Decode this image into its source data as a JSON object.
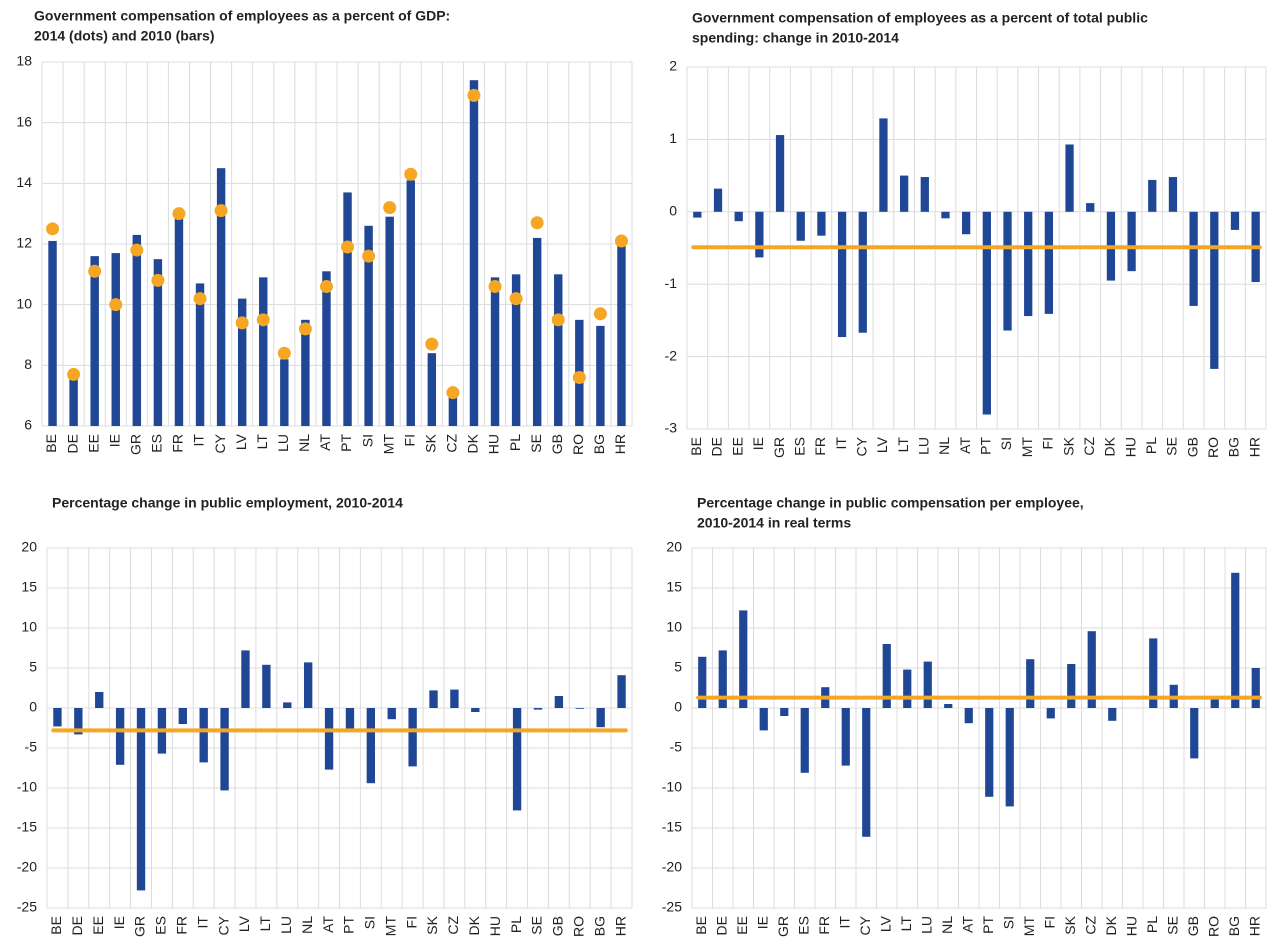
{
  "chart_data": [
    {
      "type": "bar",
      "title": [
        "Government compensation of employees as a percent of GDP:",
        "2014 (dots) and 2010 (bars)"
      ],
      "categories": [
        "BE",
        "DE",
        "EE",
        "IE",
        "GR",
        "ES",
        "FR",
        "IT",
        "CY",
        "LV",
        "LT",
        "LU",
        "NL",
        "AT",
        "PT",
        "SI",
        "MT",
        "FI",
        "SK",
        "CZ",
        "DK",
        "HU",
        "PL",
        "SE",
        "GB",
        "RO",
        "BG",
        "HR"
      ],
      "values": [
        12.1,
        7.6,
        11.6,
        11.7,
        12.3,
        11.5,
        12.9,
        10.7,
        14.5,
        10.2,
        10.9,
        8.2,
        9.5,
        11.1,
        13.7,
        12.6,
        12.9,
        14.1,
        8.4,
        7.0,
        17.4,
        10.9,
        11.0,
        12.2,
        11.0,
        9.5,
        9.3,
        12.0
      ],
      "color": "#1f4796",
      "dots": [
        12.5,
        7.7,
        11.1,
        10.0,
        11.8,
        10.8,
        13.0,
        10.2,
        13.1,
        9.4,
        9.5,
        8.4,
        9.2,
        10.6,
        11.9,
        11.6,
        13.2,
        14.3,
        8.7,
        7.1,
        16.9,
        10.6,
        10.2,
        12.7,
        9.5,
        7.6,
        9.7,
        12.1
      ],
      "dot_color": "#f5a623",
      "ylim": [
        6,
        18
      ],
      "yticks": [
        6,
        8,
        10,
        12,
        14,
        16,
        18
      ],
      "grid": true
    },
    {
      "type": "bar",
      "title": [
        "Government compensation of employees as a percent of total public",
        "spending: change in 2010-2014"
      ],
      "categories": [
        "BE",
        "DE",
        "EE",
        "IE",
        "GR",
        "ES",
        "FR",
        "IT",
        "CY",
        "LV",
        "LT",
        "LU",
        "NL",
        "AT",
        "PT",
        "SI",
        "MT",
        "FI",
        "SK",
        "CZ",
        "DK",
        "HU",
        "PL",
        "SE",
        "GB",
        "RO",
        "BG",
        "HR"
      ],
      "values": [
        -0.08,
        0.32,
        -0.13,
        -0.63,
        1.06,
        -0.4,
        -0.33,
        -1.73,
        -1.67,
        1.29,
        0.5,
        0.48,
        -0.09,
        -0.31,
        -2.8,
        -1.64,
        -1.44,
        -1.41,
        0.93,
        0.12,
        -0.95,
        -0.82,
        0.44,
        0.48,
        -1.3,
        -2.17,
        -0.25,
        -0.97
      ],
      "color": "#1f4796",
      "average": -0.49,
      "average_color": "#f5a623",
      "ylim": [
        -3,
        2
      ],
      "yticks": [
        -3,
        -2,
        -1,
        0,
        1,
        2
      ],
      "grid": true
    },
    {
      "type": "bar",
      "title": [
        "Percentage change in public employment, 2010-2014"
      ],
      "categories": [
        "BE",
        "DE",
        "EE",
        "IE",
        "GR",
        "ES",
        "FR",
        "IT",
        "CY",
        "LV",
        "LT",
        "LU",
        "NL",
        "AT",
        "PT",
        "SI",
        "MT",
        "FI",
        "SK",
        "CZ",
        "DK",
        "HU",
        "PL",
        "SE",
        "GB",
        "RO",
        "BG",
        "HR"
      ],
      "values": [
        -2.3,
        -3.3,
        2.0,
        -7.1,
        -22.8,
        -5.7,
        -2.0,
        -6.8,
        -10.3,
        7.2,
        5.4,
        0.7,
        5.7,
        -7.7,
        -2.6,
        -9.4,
        -1.4,
        -7.3,
        2.2,
        2.3,
        -0.5,
        0,
        -12.8,
        -0.2,
        1.5,
        -0.1,
        -2.4,
        4.1
      ],
      "color": "#1f4796",
      "average": -2.8,
      "average_color": "#f5a623",
      "ylim": [
        -25,
        20
      ],
      "yticks": [
        -25,
        -20,
        -15,
        -10,
        -5,
        0,
        5,
        10,
        15,
        20
      ],
      "grid": true
    },
    {
      "type": "bar",
      "title": [
        "Percentage change in public compensation per employee,",
        "2010-2014 in real terms"
      ],
      "categories": [
        "BE",
        "DE",
        "EE",
        "IE",
        "GR",
        "ES",
        "FR",
        "IT",
        "CY",
        "LV",
        "LT",
        "LU",
        "NL",
        "AT",
        "PT",
        "SI",
        "MT",
        "FI",
        "SK",
        "CZ",
        "DK",
        "HU",
        "PL",
        "SE",
        "GB",
        "RO",
        "BG",
        "HR"
      ],
      "values": [
        6.4,
        7.2,
        12.2,
        -2.8,
        -1.0,
        -8.1,
        2.6,
        -7.2,
        -16.1,
        8.0,
        4.8,
        5.8,
        0.5,
        -1.9,
        -11.1,
        -12.3,
        6.1,
        -1.3,
        5.5,
        9.6,
        -1.6,
        0,
        8.7,
        2.9,
        -6.3,
        1.1,
        16.9,
        5.0
      ],
      "color": "#1f4796",
      "average": 1.3,
      "average_color": "#f5a623",
      "ylim": [
        -25,
        20
      ],
      "yticks": [
        -25,
        -20,
        -15,
        -10,
        -5,
        0,
        5,
        10,
        15,
        20
      ],
      "grid": true
    }
  ]
}
